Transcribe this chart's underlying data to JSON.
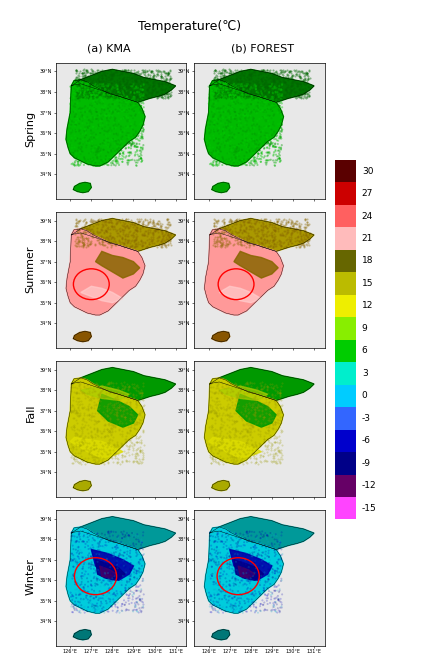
{
  "title": "Temperature(℃)",
  "col_labels": [
    "(a) KMA",
    "(b) FOREST"
  ],
  "row_labels": [
    "Spring",
    "Summer",
    "Fall",
    "Winter"
  ],
  "colorbar_values": [
    30,
    27,
    24,
    21,
    18,
    15,
    12,
    9,
    6,
    3,
    0,
    -3,
    -6,
    -9,
    -12,
    -15
  ],
  "cb_colors": [
    "#5a0000",
    "#cc0000",
    "#ff6060",
    "#ffbbbb",
    "#666600",
    "#bbbb00",
    "#eeee00",
    "#88ee00",
    "#00cc00",
    "#00eecc",
    "#00ccff",
    "#3366ff",
    "#0000cc",
    "#000088",
    "#660066",
    "#ff44ff"
  ],
  "fig_width": 4.27,
  "fig_height": 6.66,
  "dpi": 100,
  "map_xlim": [
    125.3,
    131.5
  ],
  "map_ylim": [
    32.8,
    39.4
  ],
  "xticks": [
    126,
    127,
    128,
    129,
    130,
    131
  ],
  "yticks": [
    34,
    35,
    36,
    37,
    38,
    39
  ],
  "spring_colors": {
    "north_deep": "#007700",
    "north_mid": "#009900",
    "south_deep": "#00aa00",
    "south_mid": "#00cc00",
    "south_light": "#00ee00",
    "jeju": "#00bb00"
  },
  "summer_colors": {
    "north_dark": "#886600",
    "north_mid": "#aa8800",
    "south_pink": "#ff9999",
    "south_light": "#ffcccc",
    "center": "#ffbbbb",
    "jeju": "#885500"
  },
  "fall_colors": {
    "north_green": "#008800",
    "north_mid": "#009900",
    "south_yellow": "#cccc00",
    "south_mid": "#aaaa00",
    "south_light": "#dddd00",
    "jeju": "#aaaa00"
  },
  "winter_colors": {
    "north_teal": "#009999",
    "north_mid": "#00bbbb",
    "south_teal": "#00ccdd",
    "south_blue": "#0000cc",
    "south_purple": "#3300aa",
    "jeju": "#007777"
  },
  "summer_circle_kma": [
    127.0,
    35.9,
    1.7,
    1.5
  ],
  "summer_circle_forest": [
    127.3,
    35.9,
    1.7,
    1.5
  ],
  "winter_circle_kma": [
    127.2,
    36.2,
    2.0,
    1.8
  ],
  "winter_circle_forest": [
    127.4,
    36.2,
    2.0,
    1.8
  ]
}
